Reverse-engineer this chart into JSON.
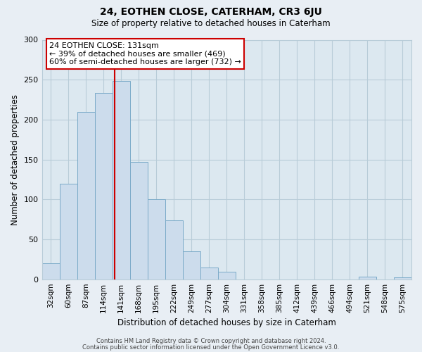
{
  "title": "24, EOTHEN CLOSE, CATERHAM, CR3 6JU",
  "subtitle": "Size of property relative to detached houses in Caterham",
  "xlabel": "Distribution of detached houses by size in Caterham",
  "ylabel": "Number of detached properties",
  "bar_values": [
    20,
    120,
    210,
    233,
    248,
    147,
    100,
    74,
    35,
    15,
    9,
    0,
    0,
    0,
    0,
    0,
    0,
    0,
    3,
    0,
    2
  ],
  "bar_labels": [
    "32sqm",
    "60sqm",
    "87sqm",
    "114sqm",
    "141sqm",
    "168sqm",
    "195sqm",
    "222sqm",
    "249sqm",
    "277sqm",
    "304sqm",
    "331sqm",
    "358sqm",
    "385sqm",
    "412sqm",
    "439sqm",
    "466sqm",
    "494sqm",
    "521sqm",
    "548sqm",
    "575sqm"
  ],
  "bar_color": "#ccdcec",
  "bar_edge_color": "#7aaac8",
  "vline_x": 4,
  "vline_color": "#cc0000",
  "ylim": [
    0,
    300
  ],
  "yticks": [
    0,
    50,
    100,
    150,
    200,
    250,
    300
  ],
  "annotation_title": "24 EOTHEN CLOSE: 131sqm",
  "annotation_line2": "← 39% of detached houses are smaller (469)",
  "annotation_line3": "60% of semi-detached houses are larger (732) →",
  "annotation_box_color": "#ffffff",
  "annotation_box_edge_color": "#cc0000",
  "footer1": "Contains HM Land Registry data © Crown copyright and database right 2024.",
  "footer2": "Contains public sector information licensed under the Open Government Licence v3.0.",
  "bg_color": "#e8eef4",
  "plot_bg_color": "#dce8f0",
  "grid_color": "#b8ccd8"
}
